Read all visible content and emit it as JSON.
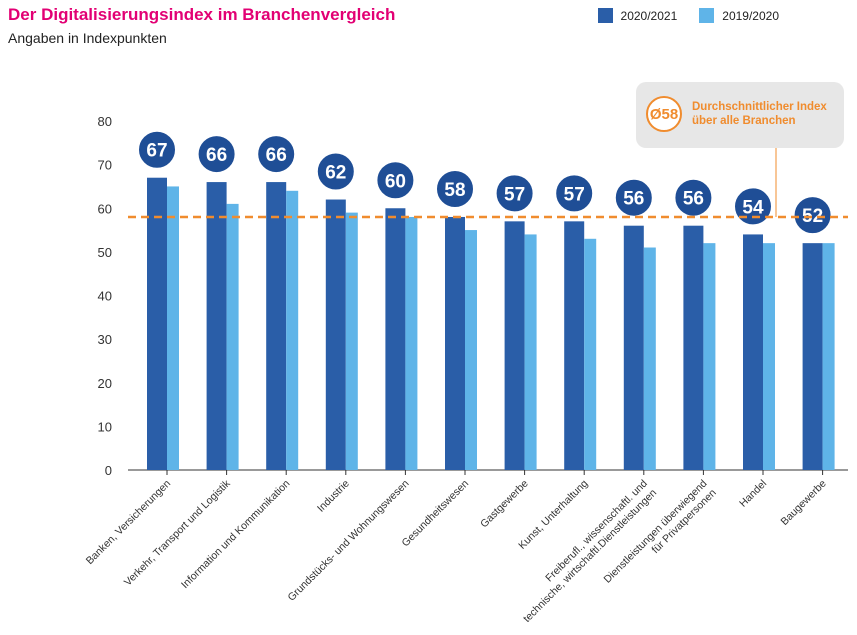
{
  "header": {
    "title": "Der Digitalisierungsindex im Branchenvergleich",
    "subtitle": "Angaben in Indexpunkten"
  },
  "average": {
    "symbol": "Ø58",
    "label_line1": "Durchschnittlicher Index",
    "label_line2": "über alle Branchen",
    "color": "#f08c2e"
  },
  "chart_data": {
    "type": "bar",
    "categories": [
      [
        "Banken, Versicherungen"
      ],
      [
        "Verkehr, Transport und Logistik"
      ],
      [
        "Information und Kommunikation"
      ],
      [
        "Industrie"
      ],
      [
        "Grundstücks- und Wohnungswesen"
      ],
      [
        "Gesundheitswesen"
      ],
      [
        "Gastgewerbe"
      ],
      [
        "Kunst, Unterhaltung"
      ],
      [
        "Freiberufl., wissenschaftl. und",
        "technische, wirtschaftl.Dienstleistungen"
      ],
      [
        "Dienstleistungen überwiegend",
        "für Privatpersonen"
      ],
      [
        "Handel"
      ],
      [
        "Baugewerbe"
      ]
    ],
    "series": [
      {
        "name": "2020/2021",
        "color": "#2a5ea8",
        "values": [
          67,
          66,
          66,
          62,
          60,
          58,
          57,
          57,
          56,
          56,
          54,
          52
        ]
      },
      {
        "name": "2019/2020",
        "color": "#5fb4e8",
        "values": [
          65,
          61,
          64,
          59,
          58,
          55,
          54,
          53,
          51,
          52,
          52,
          52
        ]
      }
    ],
    "bubble_labels": [
      "67",
      "66",
      "66",
      "62",
      "60",
      "58",
      "57",
      "57",
      "56",
      "56",
      "54",
      "52"
    ],
    "average_value": 58,
    "y_ticks": [
      0,
      10,
      20,
      30,
      40,
      50,
      60,
      70,
      80
    ],
    "ylim": [
      0,
      80
    ],
    "legend_position": "top-right",
    "grid": false
  }
}
